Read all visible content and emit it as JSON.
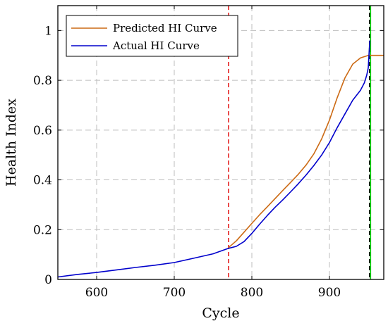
{
  "chart_data": {
    "type": "line",
    "xlabel": "Cycle",
    "ylabel": "Health Index",
    "xlim": [
      550,
      970
    ],
    "ylim": [
      0,
      1.1
    ],
    "xticks": [
      600,
      700,
      800,
      900
    ],
    "yticks": [
      0,
      0.2,
      0.4,
      0.6,
      0.8,
      1
    ],
    "ytick_labels": [
      "0",
      "0.2",
      "0.4",
      "0.6",
      "0.8",
      "1"
    ],
    "grid": true,
    "legend_position": "top-left",
    "series": [
      {
        "name": "Predicted HI Curve",
        "color": "#cc6a14",
        "x": [
          770,
          780,
          790,
          800,
          810,
          820,
          830,
          840,
          850,
          860,
          870,
          880,
          890,
          900,
          910,
          920,
          930,
          940,
          950,
          960,
          970
        ],
        "y": [
          0.128,
          0.155,
          0.19,
          0.225,
          0.26,
          0.292,
          0.325,
          0.358,
          0.39,
          0.423,
          0.46,
          0.505,
          0.565,
          0.64,
          0.73,
          0.81,
          0.865,
          0.89,
          0.9,
          0.9,
          0.9
        ]
      },
      {
        "name": "Actual HI Curve",
        "color": "#0000cc",
        "x": [
          550,
          575,
          600,
          625,
          650,
          675,
          700,
          725,
          750,
          770,
          780,
          790,
          800,
          810,
          820,
          830,
          840,
          850,
          860,
          870,
          880,
          890,
          900,
          910,
          920,
          930,
          940,
          945,
          948,
          950,
          952
        ],
        "y": [
          0.01,
          0.02,
          0.028,
          0.038,
          0.048,
          0.057,
          0.068,
          0.085,
          0.103,
          0.125,
          0.133,
          0.152,
          0.185,
          0.222,
          0.257,
          0.29,
          0.32,
          0.352,
          0.385,
          0.42,
          0.458,
          0.5,
          0.55,
          0.61,
          0.665,
          0.72,
          0.76,
          0.79,
          0.82,
          0.85,
          0.96
        ]
      }
    ],
    "vlines": [
      {
        "x": 770,
        "color": "#e00000",
        "style": "dashed"
      },
      {
        "x": 951.5,
        "color": "#000000",
        "style": "dashed"
      },
      {
        "x": 953,
        "color": "#00cc00",
        "style": "solid"
      }
    ]
  }
}
